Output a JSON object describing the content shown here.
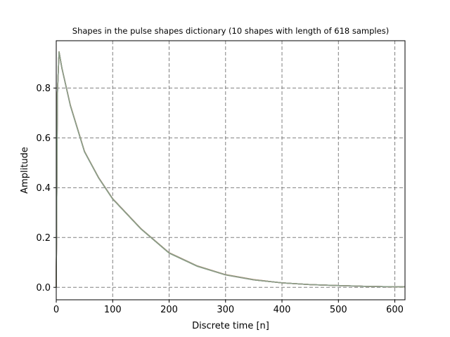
{
  "chart_data": {
    "type": "line",
    "title": "Shapes in the pulse shapes dictionary (10 shapes with length of 618 samples)",
    "xlabel": "Discrete time [n]",
    "ylabel": "Amplitude",
    "xlim": [
      0,
      618
    ],
    "ylim": [
      -0.05,
      0.99
    ],
    "xticks": [
      0,
      100,
      200,
      300,
      400,
      500,
      600
    ],
    "xtick_labels": [
      "0",
      "100",
      "200",
      "300",
      "400",
      "500",
      "600"
    ],
    "yticks": [
      0.0,
      0.2,
      0.4,
      0.6,
      0.8
    ],
    "ytick_labels": [
      "0.0",
      "0.2",
      "0.4",
      "0.6",
      "0.8"
    ],
    "grid": true,
    "grid_style": "dashed",
    "shape_count": 10,
    "shape_length": 618,
    "peak_sample": 5,
    "peak_amplitude": 0.945,
    "series": [
      {
        "color": "#4c72b0",
        "x": [
          0,
          2,
          5,
          10,
          25,
          50,
          75,
          100,
          150,
          200,
          250,
          300,
          350,
          400,
          450,
          500,
          550,
          600,
          617
        ],
        "y": [
          0.0,
          0.78,
          0.945,
          0.88,
          0.73,
          0.545,
          0.44,
          0.355,
          0.235,
          0.138,
          0.085,
          0.05,
          0.03,
          0.018,
          0.011,
          0.007,
          0.004,
          0.002,
          0.002
        ]
      },
      {
        "color": "#dd8452",
        "x": [
          0,
          2,
          5,
          10,
          25,
          50,
          75,
          100,
          150,
          200,
          250,
          300,
          350,
          400,
          450,
          500,
          550,
          600,
          617
        ],
        "y": [
          0.0,
          0.78,
          0.944,
          0.879,
          0.731,
          0.546,
          0.441,
          0.356,
          0.236,
          0.139,
          0.086,
          0.051,
          0.031,
          0.018,
          0.011,
          0.007,
          0.004,
          0.002,
          0.002
        ]
      },
      {
        "color": "#55a868",
        "x": [
          0,
          2,
          5,
          10,
          25,
          50,
          75,
          100,
          150,
          200,
          250,
          300,
          350,
          400,
          450,
          500,
          550,
          600,
          617
        ],
        "y": [
          0.0,
          0.77,
          0.943,
          0.881,
          0.729,
          0.544,
          0.439,
          0.354,
          0.234,
          0.137,
          0.084,
          0.05,
          0.03,
          0.018,
          0.011,
          0.007,
          0.004,
          0.002,
          0.002
        ]
      },
      {
        "color": "#c44e52",
        "x": [
          0,
          2,
          5,
          10,
          25,
          50,
          75,
          100,
          150,
          200,
          250,
          300,
          350,
          400,
          450,
          500,
          550,
          600,
          617
        ],
        "y": [
          0.0,
          0.78,
          0.945,
          0.88,
          0.732,
          0.546,
          0.44,
          0.355,
          0.235,
          0.138,
          0.085,
          0.05,
          0.03,
          0.018,
          0.011,
          0.007,
          0.004,
          0.002,
          0.002
        ]
      },
      {
        "color": "#8172b3",
        "x": [
          0,
          2,
          5,
          10,
          25,
          50,
          75,
          100,
          150,
          200,
          250,
          300,
          350,
          400,
          450,
          500,
          550,
          600,
          617
        ],
        "y": [
          0.0,
          0.77,
          0.944,
          0.879,
          0.73,
          0.545,
          0.44,
          0.355,
          0.235,
          0.138,
          0.085,
          0.05,
          0.03,
          0.018,
          0.011,
          0.007,
          0.004,
          0.002,
          0.002
        ]
      },
      {
        "color": "#937860",
        "x": [
          0,
          2,
          5,
          10,
          25,
          50,
          75,
          100,
          150,
          200,
          250,
          300,
          350,
          400,
          450,
          500,
          550,
          600,
          617
        ],
        "y": [
          0.0,
          0.78,
          0.946,
          0.881,
          0.731,
          0.546,
          0.441,
          0.356,
          0.236,
          0.139,
          0.086,
          0.051,
          0.031,
          0.018,
          0.011,
          0.007,
          0.004,
          0.002,
          0.002
        ]
      },
      {
        "color": "#da8bc3",
        "x": [
          0,
          2,
          5,
          10,
          25,
          50,
          75,
          100,
          150,
          200,
          250,
          300,
          350,
          400,
          450,
          500,
          550,
          600,
          617
        ],
        "y": [
          0.0,
          0.77,
          0.944,
          0.88,
          0.73,
          0.545,
          0.44,
          0.355,
          0.235,
          0.138,
          0.085,
          0.05,
          0.03,
          0.018,
          0.011,
          0.007,
          0.004,
          0.002,
          0.002
        ]
      },
      {
        "color": "#8c8c8c",
        "x": [
          0,
          2,
          5,
          10,
          25,
          50,
          75,
          100,
          150,
          200,
          250,
          300,
          350,
          400,
          450,
          500,
          550,
          600,
          617
        ],
        "y": [
          0.0,
          0.78,
          0.945,
          0.88,
          0.73,
          0.545,
          0.44,
          0.355,
          0.235,
          0.138,
          0.085,
          0.05,
          0.03,
          0.018,
          0.011,
          0.007,
          0.004,
          0.002,
          0.002
        ]
      },
      {
        "color": "#ccb974",
        "x": [
          0,
          2,
          5,
          10,
          25,
          50,
          75,
          100,
          150,
          200,
          250,
          300,
          350,
          400,
          450,
          500,
          550,
          600,
          617
        ],
        "y": [
          0.0,
          0.78,
          0.945,
          0.88,
          0.731,
          0.546,
          0.44,
          0.355,
          0.235,
          0.138,
          0.085,
          0.05,
          0.03,
          0.018,
          0.011,
          0.007,
          0.004,
          0.002,
          0.002
        ]
      },
      {
        "color": "#7f9a8c",
        "x": [
          0,
          2,
          5,
          10,
          25,
          50,
          75,
          100,
          150,
          200,
          250,
          300,
          350,
          400,
          450,
          500,
          550,
          600,
          617
        ],
        "y": [
          0.0,
          0.78,
          0.945,
          0.88,
          0.73,
          0.545,
          0.44,
          0.355,
          0.235,
          0.138,
          0.085,
          0.05,
          0.03,
          0.018,
          0.011,
          0.007,
          0.004,
          0.002,
          0.002
        ]
      }
    ]
  }
}
